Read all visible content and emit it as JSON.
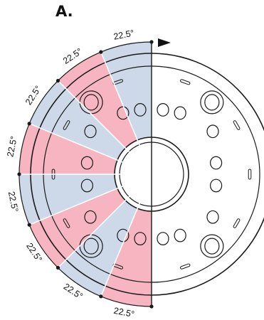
{
  "title": "A.",
  "colors": {
    "pink": "#f6b5c0",
    "blue": "#cdd9e8",
    "stroke": "#1a1a1a"
  },
  "sector_angle_deg": 22.5,
  "sectors": [
    {
      "label": "22.5°",
      "color": "blue"
    },
    {
      "label": "22.5°",
      "color": "pink"
    },
    {
      "label": "22.5°",
      "color": "blue"
    },
    {
      "label": "22.5°",
      "color": "pink"
    },
    {
      "label": "22.5°",
      "color": "blue"
    },
    {
      "label": "22.5°",
      "color": "pink"
    },
    {
      "label": "22.5°",
      "color": "blue"
    },
    {
      "label": "22.5°",
      "color": "pink"
    }
  ],
  "arrow_icon": "right-triangle-arrow-icon"
}
